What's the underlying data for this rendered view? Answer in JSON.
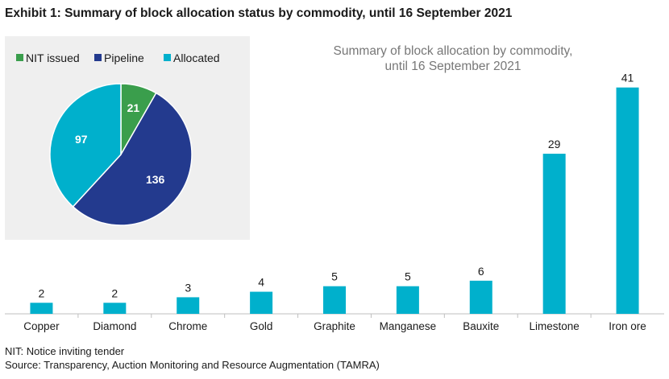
{
  "exhibit_title": "Exhibit 1: Summary of block allocation status by commodity, until 16 September 2021",
  "footnotes": {
    "nit": "NIT: Notice inviting tender",
    "source": "Source: Transparency, Auction Monitoring and Resource Augmentation (TAMRA)"
  },
  "chart_data": [
    {
      "type": "bar",
      "title": "Summary of block allocation by commodity,",
      "title_line2": "until 16 September 2021",
      "categories": [
        "Copper",
        "Diamond",
        "Chrome",
        "Gold",
        "Graphite",
        "Manganese",
        "Bauxite",
        "Limestone",
        "Iron ore"
      ],
      "values": [
        2,
        2,
        3,
        4,
        5,
        5,
        6,
        29,
        41
      ],
      "ylim": [
        0,
        43
      ],
      "grid": false,
      "data_labels": true,
      "bar_color": "#00b0cc"
    },
    {
      "type": "pie",
      "labels": [
        "NIT issued",
        "Pipeline",
        "Allocated"
      ],
      "values": [
        21,
        136,
        97
      ],
      "colors": [
        "#3a9e4c",
        "#233a8e",
        "#00b0cc"
      ],
      "legend": "top"
    }
  ]
}
